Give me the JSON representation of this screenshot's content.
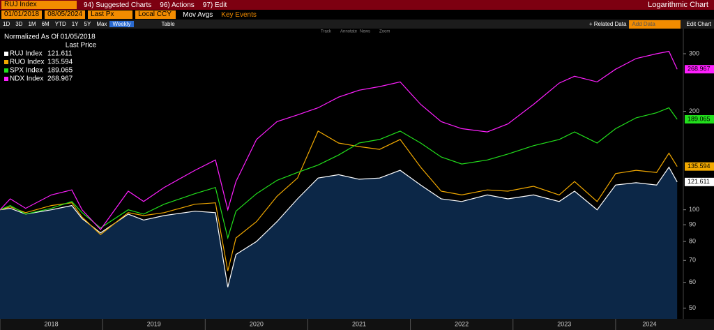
{
  "toolbar": {
    "ticker": "RUJ Index",
    "menus": [
      "94) Suggested Charts",
      "96) Actions",
      "97) Edit"
    ],
    "chart_kind": "Logarithmic Chart",
    "start_date": "01/01/2018",
    "end_date": "08/05/2024",
    "field": "Last Px",
    "currency": "Local CCY",
    "options": [
      "Mov Avgs",
      "Key Events"
    ],
    "periods": [
      "1D",
      "3D",
      "1M",
      "6M",
      "YTD",
      "1Y",
      "5Y",
      "Max"
    ],
    "frequency": "Weekly",
    "table": "Table",
    "related": "+ Related Data",
    "add_data": "Add Data",
    "edit_chart": "Edit Chart",
    "tools": [
      "Track",
      "Annotate",
      "News",
      "Zoom"
    ]
  },
  "chart_data": {
    "type": "line",
    "legend_title": "Normalized As Of 01/05/2018",
    "legend_header": "Last Price",
    "log_scale": true,
    "x": [
      2018.0,
      2018.1,
      2018.25,
      2018.5,
      2018.7,
      2018.8,
      2018.98,
      2019.25,
      2019.4,
      2019.6,
      2019.9,
      2020.1,
      2020.22,
      2020.3,
      2020.5,
      2020.7,
      2020.9,
      2021.1,
      2021.3,
      2021.5,
      2021.7,
      2021.9,
      2022.1,
      2022.3,
      2022.5,
      2022.75,
      2022.95,
      2023.2,
      2023.45,
      2023.6,
      2023.82,
      2024.0,
      2024.2,
      2024.4,
      2024.52,
      2024.6
    ],
    "series": [
      {
        "name": "RUJ Index",
        "color": "#ffffff",
        "fill": "#0c2747",
        "values": [
          100,
          101,
          97,
          100,
          103,
          94,
          85,
          97,
          93,
          96,
          99,
          98,
          58,
          73,
          80,
          92,
          108,
          125,
          128,
          124,
          125,
          132,
          119,
          108,
          106,
          111,
          108,
          111,
          106,
          114,
          100,
          119,
          121,
          119,
          135,
          121.611
        ]
      },
      {
        "name": "RUO Index",
        "color": "#f2a900",
        "values": [
          100,
          102,
          98,
          103,
          105,
          95,
          84,
          98,
          96,
          98,
          104,
          105,
          65,
          82,
          92,
          110,
          125,
          174,
          160,
          156,
          153,
          164,
          135,
          114,
          111,
          115,
          114,
          118,
          111,
          122,
          106,
          129,
          132,
          130,
          149,
          135.594
        ]
      },
      {
        "name": "SPX Index",
        "color": "#22e01c",
        "values": [
          100,
          103,
          97,
          101,
          106,
          98,
          88,
          100,
          97,
          104,
          112,
          117,
          82,
          99,
          112,
          123,
          130,
          137,
          147,
          160,
          164,
          174,
          160,
          145,
          138,
          142,
          148,
          157,
          164,
          173,
          160,
          177,
          191,
          198,
          205,
          189.065
        ]
      },
      {
        "name": "NDX Index",
        "color": "#ff1fff",
        "values": [
          100,
          108,
          101,
          111,
          115,
          100,
          87,
          114,
          106,
          117,
          132,
          142,
          100,
          122,
          164,
          186,
          195,
          205,
          221,
          232,
          238,
          246,
          210,
          186,
          177,
          173,
          183,
          210,
          244,
          256,
          246,
          269,
          290,
          300,
          305,
          268.967
        ]
      }
    ],
    "xlim": [
      2018,
      2024.66
    ],
    "xticks": [
      2018,
      2019,
      2020,
      2021,
      2022,
      2023,
      2024
    ],
    "ylim": [
      46.4,
      358
    ],
    "yticks": [
      50,
      60,
      70,
      80,
      90,
      100,
      200,
      300
    ]
  }
}
